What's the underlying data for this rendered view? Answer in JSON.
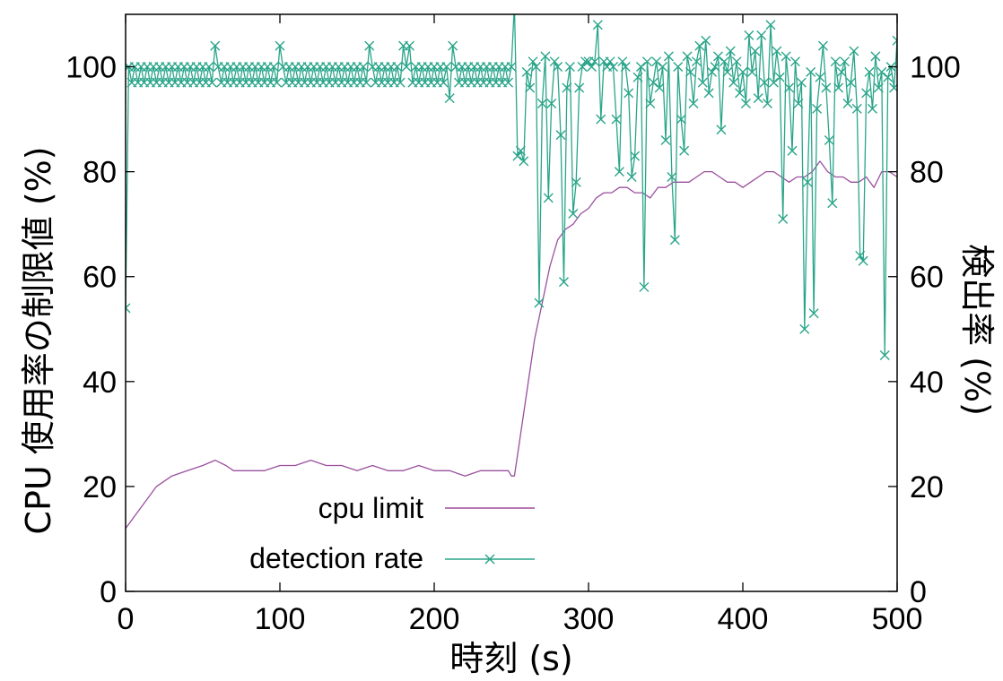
{
  "chart_data": {
    "type": "line",
    "title": "",
    "xlabel": "時刻 (s)",
    "ylabel_left": "CPU 使用率の制限値 (%)",
    "ylabel_right": "検出率 (%)",
    "xlim": [
      0,
      500
    ],
    "ylim": [
      0,
      110
    ],
    "xticks": [
      0,
      100,
      200,
      300,
      400,
      500
    ],
    "yticks": [
      0,
      20,
      40,
      60,
      80,
      100
    ],
    "grid": false,
    "legend_position": "bottom-left",
    "series": [
      {
        "name": "cpu limit",
        "color": "#9b4f9e",
        "marker": "none",
        "points": [
          [
            0,
            12
          ],
          [
            5,
            14
          ],
          [
            10,
            16
          ],
          [
            15,
            18
          ],
          [
            20,
            20
          ],
          [
            25,
            21
          ],
          [
            30,
            22
          ],
          [
            40,
            23
          ],
          [
            50,
            24
          ],
          [
            58,
            25
          ],
          [
            65,
            24
          ],
          [
            70,
            23
          ],
          [
            80,
            23
          ],
          [
            90,
            23
          ],
          [
            100,
            24
          ],
          [
            110,
            24
          ],
          [
            120,
            25
          ],
          [
            130,
            24
          ],
          [
            140,
            24
          ],
          [
            150,
            23
          ],
          [
            160,
            24
          ],
          [
            170,
            23
          ],
          [
            180,
            23
          ],
          [
            190,
            24
          ],
          [
            200,
            23
          ],
          [
            210,
            23
          ],
          [
            220,
            22
          ],
          [
            230,
            23
          ],
          [
            240,
            23
          ],
          [
            248,
            23
          ],
          [
            250,
            22
          ],
          [
            252,
            22
          ],
          [
            255,
            28
          ],
          [
            260,
            38
          ],
          [
            265,
            48
          ],
          [
            270,
            55
          ],
          [
            275,
            62
          ],
          [
            280,
            67
          ],
          [
            285,
            69
          ],
          [
            290,
            70
          ],
          [
            295,
            72
          ],
          [
            300,
            73
          ],
          [
            305,
            75
          ],
          [
            310,
            76
          ],
          [
            315,
            76
          ],
          [
            320,
            77
          ],
          [
            325,
            77
          ],
          [
            330,
            76
          ],
          [
            335,
            76
          ],
          [
            340,
            75
          ],
          [
            345,
            77
          ],
          [
            350,
            77
          ],
          [
            355,
            78
          ],
          [
            360,
            78
          ],
          [
            365,
            78
          ],
          [
            370,
            79
          ],
          [
            375,
            80
          ],
          [
            380,
            80
          ],
          [
            385,
            79
          ],
          [
            390,
            78
          ],
          [
            395,
            78
          ],
          [
            400,
            77
          ],
          [
            405,
            78
          ],
          [
            410,
            79
          ],
          [
            415,
            80
          ],
          [
            420,
            80
          ],
          [
            425,
            79
          ],
          [
            430,
            78
          ],
          [
            435,
            79
          ],
          [
            440,
            79
          ],
          [
            445,
            80
          ],
          [
            450,
            82
          ],
          [
            455,
            80
          ],
          [
            460,
            79
          ],
          [
            465,
            79
          ],
          [
            470,
            78
          ],
          [
            475,
            78
          ],
          [
            480,
            79
          ],
          [
            485,
            77
          ],
          [
            490,
            80
          ],
          [
            495,
            80
          ],
          [
            500,
            79
          ]
        ]
      },
      {
        "name": "detection rate",
        "color": "#2aa58a",
        "marker": "x",
        "points": [
          [
            0,
            54
          ],
          [
            2,
            100
          ],
          [
            4,
            97
          ],
          [
            6,
            100
          ],
          [
            8,
            97
          ],
          [
            10,
            100
          ],
          [
            12,
            97
          ],
          [
            14,
            100
          ],
          [
            16,
            97
          ],
          [
            18,
            100
          ],
          [
            20,
            97
          ],
          [
            22,
            100
          ],
          [
            24,
            97
          ],
          [
            26,
            100
          ],
          [
            28,
            97
          ],
          [
            30,
            100
          ],
          [
            32,
            97
          ],
          [
            34,
            100
          ],
          [
            36,
            97
          ],
          [
            38,
            100
          ],
          [
            40,
            97
          ],
          [
            42,
            100
          ],
          [
            44,
            97
          ],
          [
            46,
            100
          ],
          [
            48,
            97
          ],
          [
            50,
            100
          ],
          [
            52,
            97
          ],
          [
            54,
            100
          ],
          [
            56,
            97
          ],
          [
            58,
            104
          ],
          [
            60,
            100
          ],
          [
            62,
            97
          ],
          [
            64,
            100
          ],
          [
            66,
            97
          ],
          [
            68,
            100
          ],
          [
            70,
            97
          ],
          [
            72,
            100
          ],
          [
            74,
            97
          ],
          [
            76,
            100
          ],
          [
            78,
            97
          ],
          [
            80,
            100
          ],
          [
            82,
            97
          ],
          [
            84,
            100
          ],
          [
            86,
            97
          ],
          [
            88,
            100
          ],
          [
            90,
            97
          ],
          [
            92,
            100
          ],
          [
            94,
            97
          ],
          [
            96,
            100
          ],
          [
            98,
            97
          ],
          [
            100,
            104
          ],
          [
            102,
            100
          ],
          [
            104,
            97
          ],
          [
            106,
            100
          ],
          [
            108,
            97
          ],
          [
            110,
            100
          ],
          [
            112,
            97
          ],
          [
            114,
            100
          ],
          [
            116,
            97
          ],
          [
            118,
            100
          ],
          [
            120,
            97
          ],
          [
            122,
            100
          ],
          [
            124,
            97
          ],
          [
            126,
            100
          ],
          [
            128,
            97
          ],
          [
            130,
            100
          ],
          [
            132,
            97
          ],
          [
            134,
            100
          ],
          [
            136,
            97
          ],
          [
            138,
            100
          ],
          [
            140,
            97
          ],
          [
            142,
            100
          ],
          [
            144,
            97
          ],
          [
            146,
            100
          ],
          [
            148,
            97
          ],
          [
            150,
            100
          ],
          [
            152,
            97
          ],
          [
            154,
            100
          ],
          [
            156,
            97
          ],
          [
            158,
            104
          ],
          [
            160,
            100
          ],
          [
            162,
            97
          ],
          [
            164,
            100
          ],
          [
            166,
            97
          ],
          [
            168,
            100
          ],
          [
            170,
            97
          ],
          [
            172,
            100
          ],
          [
            174,
            97
          ],
          [
            176,
            100
          ],
          [
            178,
            97
          ],
          [
            180,
            104
          ],
          [
            182,
            100
          ],
          [
            184,
            104
          ],
          [
            186,
            97
          ],
          [
            188,
            100
          ],
          [
            190,
            97
          ],
          [
            192,
            100
          ],
          [
            194,
            97
          ],
          [
            196,
            100
          ],
          [
            198,
            97
          ],
          [
            200,
            100
          ],
          [
            202,
            97
          ],
          [
            204,
            100
          ],
          [
            206,
            97
          ],
          [
            208,
            100
          ],
          [
            210,
            94
          ],
          [
            212,
            104
          ],
          [
            214,
            100
          ],
          [
            216,
            97
          ],
          [
            218,
            100
          ],
          [
            220,
            97
          ],
          [
            222,
            100
          ],
          [
            224,
            97
          ],
          [
            226,
            100
          ],
          [
            228,
            97
          ],
          [
            230,
            100
          ],
          [
            232,
            97
          ],
          [
            234,
            100
          ],
          [
            236,
            97
          ],
          [
            238,
            100
          ],
          [
            240,
            97
          ],
          [
            242,
            100
          ],
          [
            244,
            97
          ],
          [
            246,
            100
          ],
          [
            248,
            97
          ],
          [
            250,
            100
          ],
          [
            252,
            112
          ],
          [
            254,
            83
          ],
          [
            256,
            84
          ],
          [
            258,
            82
          ],
          [
            260,
            99
          ],
          [
            262,
            96
          ],
          [
            264,
            101
          ],
          [
            266,
            100
          ],
          [
            268,
            55
          ],
          [
            270,
            93
          ],
          [
            272,
            102
          ],
          [
            274,
            75
          ],
          [
            276,
            93
          ],
          [
            278,
            101
          ],
          [
            280,
            100
          ],
          [
            282,
            87
          ],
          [
            284,
            59
          ],
          [
            286,
            96
          ],
          [
            288,
            100
          ],
          [
            290,
            72
          ],
          [
            292,
            78
          ],
          [
            294,
            96
          ],
          [
            296,
            100
          ],
          [
            298,
            101
          ],
          [
            300,
            101
          ],
          [
            302,
            100
          ],
          [
            304,
            101
          ],
          [
            306,
            108
          ],
          [
            308,
            90
          ],
          [
            310,
            101
          ],
          [
            312,
            100
          ],
          [
            314,
            101
          ],
          [
            316,
            100
          ],
          [
            318,
            90
          ],
          [
            320,
            80
          ],
          [
            322,
            101
          ],
          [
            324,
            100
          ],
          [
            326,
            95
          ],
          [
            328,
            79
          ],
          [
            330,
            83
          ],
          [
            332,
            98
          ],
          [
            334,
            100
          ],
          [
            336,
            58
          ],
          [
            338,
            101
          ],
          [
            340,
            93
          ],
          [
            342,
            97
          ],
          [
            344,
            101
          ],
          [
            346,
            96
          ],
          [
            348,
            100
          ],
          [
            350,
            86
          ],
          [
            352,
            102
          ],
          [
            354,
            79
          ],
          [
            356,
            67
          ],
          [
            358,
            100
          ],
          [
            360,
            90
          ],
          [
            362,
            84
          ],
          [
            364,
            102
          ],
          [
            366,
            99
          ],
          [
            368,
            93
          ],
          [
            370,
            101
          ],
          [
            372,
            104
          ],
          [
            374,
            97
          ],
          [
            376,
            105
          ],
          [
            378,
            95
          ],
          [
            380,
            99
          ],
          [
            382,
            100
          ],
          [
            384,
            102
          ],
          [
            386,
            88
          ],
          [
            388,
            101
          ],
          [
            390,
            99
          ],
          [
            392,
            103
          ],
          [
            394,
            97
          ],
          [
            396,
            101
          ],
          [
            398,
            95
          ],
          [
            400,
            99
          ],
          [
            402,
            93
          ],
          [
            404,
            106
          ],
          [
            406,
            99
          ],
          [
            408,
            103
          ],
          [
            410,
            94
          ],
          [
            412,
            106
          ],
          [
            414,
            97
          ],
          [
            416,
            93
          ],
          [
            418,
            108
          ],
          [
            420,
            97
          ],
          [
            422,
            103
          ],
          [
            424,
            98
          ],
          [
            426,
            71
          ],
          [
            428,
            102
          ],
          [
            430,
            96
          ],
          [
            432,
            84
          ],
          [
            434,
            101
          ],
          [
            436,
            93
          ],
          [
            438,
            97
          ],
          [
            440,
            50
          ],
          [
            442,
            78
          ],
          [
            444,
            99
          ],
          [
            446,
            53
          ],
          [
            448,
            92
          ],
          [
            450,
            98
          ],
          [
            452,
            104
          ],
          [
            454,
            96
          ],
          [
            456,
            86
          ],
          [
            458,
            74
          ],
          [
            460,
            101
          ],
          [
            462,
            96
          ],
          [
            464,
            99
          ],
          [
            466,
            101
          ],
          [
            468,
            93
          ],
          [
            470,
            97
          ],
          [
            472,
            103
          ],
          [
            474,
            92
          ],
          [
            476,
            64
          ],
          [
            478,
            63
          ],
          [
            480,
            95
          ],
          [
            482,
            99
          ],
          [
            484,
            92
          ],
          [
            486,
            102
          ],
          [
            488,
            96
          ],
          [
            490,
            99
          ],
          [
            492,
            45
          ],
          [
            494,
            98
          ],
          [
            496,
            100
          ],
          [
            498,
            96
          ],
          [
            500,
            105
          ]
        ]
      }
    ]
  }
}
